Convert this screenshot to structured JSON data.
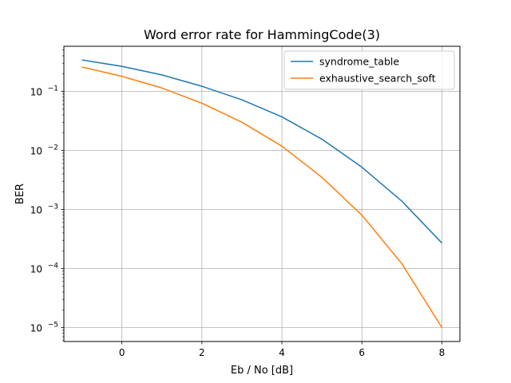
{
  "chart_data": {
    "type": "line",
    "title": "Word error rate for HammingCode(3)",
    "xlabel": "Eb / No [dB]",
    "ylabel": "BER",
    "yscale": "log",
    "xlim": [
      -1.45,
      8.45
    ],
    "ylim": [
      5.8e-06,
      0.58
    ],
    "x_ticks": [
      0,
      2,
      4,
      6,
      8
    ],
    "x_tick_labels": [
      "0",
      "2",
      "4",
      "6",
      "8"
    ],
    "y_ticks": [
      1e-05,
      0.0001,
      0.001,
      0.01,
      0.1
    ],
    "y_tick_labels": [
      {
        "base": "10",
        "exp": "−5"
      },
      {
        "base": "10",
        "exp": "−4"
      },
      {
        "base": "10",
        "exp": "−3"
      },
      {
        "base": "10",
        "exp": "−2"
      },
      {
        "base": "10",
        "exp": "−1"
      }
    ],
    "grid": true,
    "legend_position": "top-right",
    "x": [
      -1,
      0,
      1,
      2,
      3,
      4,
      5,
      6,
      7,
      8
    ],
    "series": [
      {
        "name": "syndrome_table",
        "color": "#1f77b4",
        "values": [
          0.34,
          0.265,
          0.19,
          0.122,
          0.072,
          0.037,
          0.0155,
          0.0052,
          0.00138,
          0.00027
        ]
      },
      {
        "name": "exhaustive_search_soft",
        "color": "#ff7f0e",
        "values": [
          0.258,
          0.18,
          0.114,
          0.063,
          0.03,
          0.0118,
          0.0035,
          0.0008,
          0.00012,
          1e-05
        ]
      }
    ]
  }
}
